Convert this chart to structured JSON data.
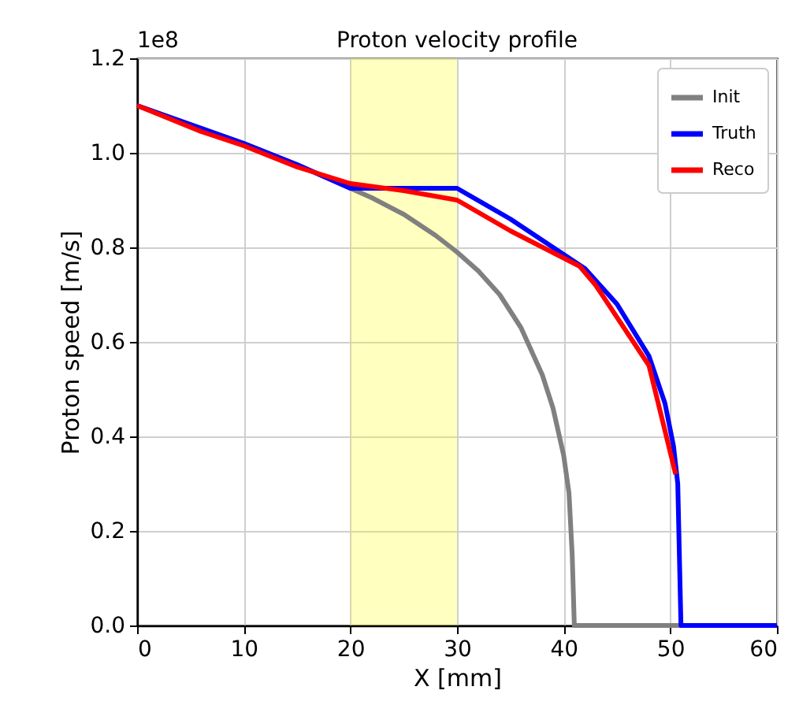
{
  "chart_data": {
    "type": "line",
    "title": "Proton velocity profile",
    "xlabel": "X [mm]",
    "ylabel": "Proton speed [m/s]",
    "annotations": [
      "1e8"
    ],
    "xlim": [
      0,
      60
    ],
    "ylim": [
      0,
      1.2
    ],
    "xticks": [
      0,
      10,
      20,
      30,
      40,
      50,
      60
    ],
    "yticks": [
      {
        "value": 0,
        "label": "0.0"
      },
      {
        "value": 0.2,
        "label": "0.2"
      },
      {
        "value": 0.4,
        "label": "0.4"
      },
      {
        "value": 0.6,
        "label": "0.6"
      },
      {
        "value": 0.8,
        "label": "0.8"
      },
      {
        "value": 1.0,
        "label": "1.0"
      },
      {
        "value": 1.2,
        "label": "1.2"
      }
    ],
    "grid": true,
    "legend": "top right",
    "line_style": "solid",
    "bands": [
      {
        "axis": "x",
        "from": 20,
        "to": 30,
        "color": "#ffff00"
      }
    ],
    "series": [
      {
        "name": "Init",
        "color": "#808080",
        "x": [
          0,
          5,
          10,
          15,
          20,
          22,
          25,
          28,
          30,
          32,
          34,
          36,
          38,
          39,
          40,
          40.5,
          40.8,
          41,
          51
        ],
        "values": [
          1.1,
          1.06,
          1.02,
          0.975,
          0.925,
          0.905,
          0.87,
          0.825,
          0.79,
          0.75,
          0.7,
          0.63,
          0.53,
          0.46,
          0.36,
          0.28,
          0.15,
          0,
          0
        ]
      },
      {
        "name": "Truth",
        "color": "#0000ff",
        "x": [
          0,
          5,
          10,
          15,
          20,
          30,
          35,
          40,
          42,
          45,
          48,
          49.5,
          50.3,
          50.7,
          51,
          60
        ],
        "values": [
          1.1,
          1.06,
          1.02,
          0.975,
          0.925,
          0.925,
          0.86,
          0.785,
          0.755,
          0.68,
          0.57,
          0.47,
          0.38,
          0.3,
          0,
          0
        ]
      },
      {
        "name": "Reco",
        "color": "#ff0000",
        "x": [
          0,
          6,
          10,
          15,
          20,
          25,
          30,
          35,
          41.5,
          43,
          48,
          50.5
        ],
        "values": [
          1.1,
          1.045,
          1.015,
          0.97,
          0.935,
          0.92,
          0.9,
          0.835,
          0.76,
          0.72,
          0.55,
          0.32
        ]
      }
    ]
  }
}
